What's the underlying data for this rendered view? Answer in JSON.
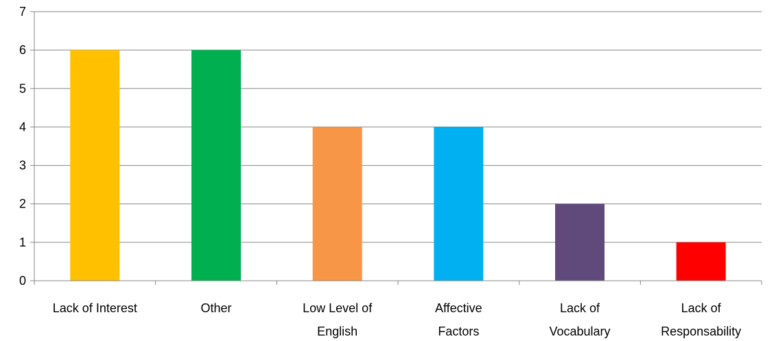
{
  "chart_data": {
    "type": "bar",
    "title": "",
    "xlabel": "",
    "ylabel": "",
    "ylim": [
      0,
      7
    ],
    "yticks": [
      0,
      1,
      2,
      3,
      4,
      5,
      6,
      7
    ],
    "grid": true,
    "legend": "none",
    "categories": [
      [
        "Lack of Interest"
      ],
      [
        "Other"
      ],
      [
        "Low Level of",
        "English"
      ],
      [
        "Affective",
        "Factors"
      ],
      [
        "Lack of",
        "Vocabulary"
      ],
      [
        "Lack of",
        "Responsability"
      ]
    ],
    "values": [
      6,
      6,
      4,
      4,
      2,
      1
    ],
    "colors": [
      "#ffc000",
      "#00b050",
      "#f79646",
      "#00b0f0",
      "#604a7b",
      "#ff0000"
    ]
  }
}
